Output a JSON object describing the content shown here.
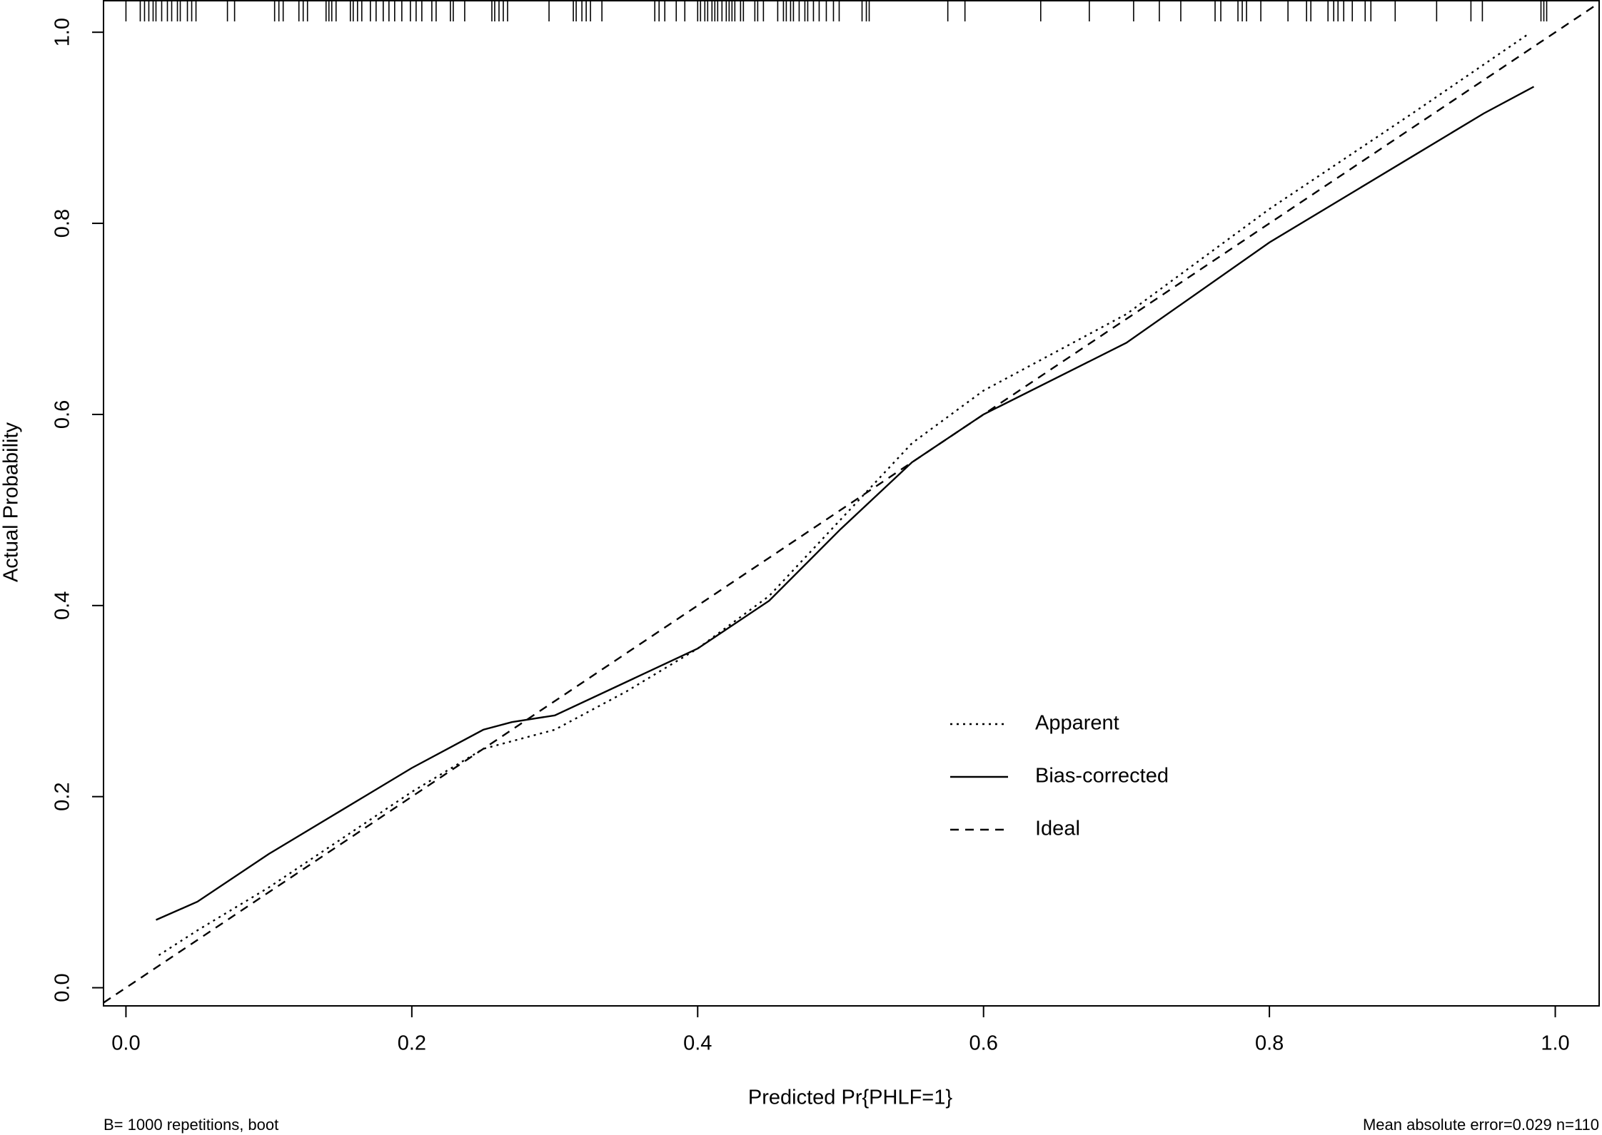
{
  "chart_data": {
    "type": "line",
    "x_label": "Predicted Pr{PHLF=1}",
    "y_label": "Actual Probability",
    "footnote_left": "B= 1000 repetitions, boot",
    "footnote_right": "Mean absolute error=0.029 n=110",
    "xlim": [
      -0.0157,
      1.0307
    ],
    "ylim": [
      -0.019,
      1.033
    ],
    "xticks": [
      {
        "value": 0,
        "label": "0.0"
      },
      0.2,
      0.4,
      0.6,
      0.8,
      {
        "value": 1,
        "label": "1.0"
      }
    ],
    "yticks": [
      {
        "value": 0,
        "label": "0.0"
      },
      0.2,
      0.4,
      0.6,
      0.8,
      {
        "value": 1,
        "label": "1.0"
      }
    ],
    "legend_position": "center-right",
    "series": [
      {
        "name": "Apparent",
        "color": "#000000",
        "line_style": "dotted",
        "x": [
          0.023,
          0.05,
          0.1,
          0.15,
          0.2,
          0.25,
          0.3,
          0.35,
          0.4,
          0.45,
          0.5,
          0.55,
          0.6,
          0.7,
          0.8,
          0.9,
          0.981
        ],
        "values": [
          0.034,
          0.06,
          0.105,
          0.155,
          0.205,
          0.25,
          0.27,
          0.31,
          0.355,
          0.41,
          0.49,
          0.57,
          0.625,
          0.705,
          0.815,
          0.915,
          0.998
        ]
      },
      {
        "name": "Bias-corrected",
        "color": "#000000",
        "line_style": "solid",
        "x": [
          0.021,
          0.05,
          0.1,
          0.15,
          0.2,
          0.25,
          0.27,
          0.3,
          0.35,
          0.4,
          0.45,
          0.5,
          0.55,
          0.6,
          0.7,
          0.8,
          0.9,
          0.95,
          0.985
        ],
        "values": [
          0.071,
          0.09,
          0.14,
          0.185,
          0.23,
          0.27,
          0.278,
          0.285,
          0.32,
          0.355,
          0.405,
          0.48,
          0.55,
          0.6,
          0.675,
          0.78,
          0.87,
          0.915,
          0.943
        ]
      },
      {
        "name": "Ideal",
        "color": "#000000",
        "line_style": "dashed",
        "x": [
          -0.0157,
          1.0307
        ],
        "values": [
          -0.0157,
          1.0307
        ]
      }
    ],
    "rug": [
      0.0,
      0.01,
      0.013,
      0.016,
      0.019,
      0.021,
      0.025,
      0.029,
      0.032,
      0.036,
      0.038,
      0.043,
      0.046,
      0.049,
      0.071,
      0.076,
      0.104,
      0.107,
      0.11,
      0.121,
      0.124,
      0.127,
      0.14,
      0.142,
      0.144,
      0.147,
      0.157,
      0.159,
      0.162,
      0.165,
      0.171,
      0.175,
      0.18,
      0.184,
      0.188,
      0.193,
      0.199,
      0.203,
      0.207,
      0.214,
      0.217,
      0.227,
      0.229,
      0.237,
      0.256,
      0.258,
      0.261,
      0.264,
      0.267,
      0.296,
      0.313,
      0.315,
      0.319,
      0.322,
      0.325,
      0.333,
      0.37,
      0.373,
      0.377,
      0.385,
      0.391,
      0.4,
      0.402,
      0.405,
      0.407,
      0.41,
      0.412,
      0.414,
      0.417,
      0.42,
      0.422,
      0.424,
      0.426,
      0.43,
      0.432,
      0.44,
      0.442,
      0.446,
      0.456,
      0.46,
      0.462,
      0.465,
      0.467,
      0.471,
      0.475,
      0.477,
      0.481,
      0.485,
      0.49,
      0.495,
      0.499,
      0.515,
      0.518,
      0.52,
      0.575,
      0.587,
      0.64,
      0.674,
      0.705,
      0.723,
      0.738,
      0.762,
      0.766,
      0.778,
      0.781,
      0.784,
      0.794,
      0.813,
      0.826,
      0.829,
      0.841,
      0.845,
      0.848,
      0.852,
      0.858,
      0.867,
      0.871,
      0.888,
      0.917,
      0.941,
      0.949,
      0.99,
      0.992,
      0.994
    ]
  }
}
